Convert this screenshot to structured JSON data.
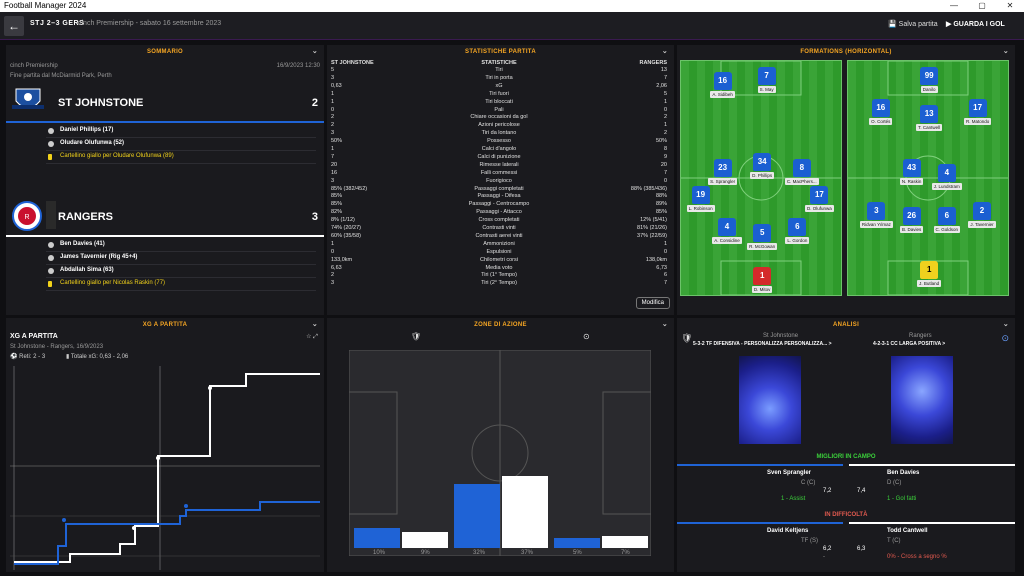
{
  "window": {
    "title": "Football Manager 2024",
    "controls": [
      "—",
      "▢",
      "✕"
    ]
  },
  "header": {
    "back_label": "←",
    "score": "STJ  2–3  GERS",
    "fixture": "cinch Premiership - sabato 16 settembre 2023",
    "save_label": "Salva partita",
    "watch_label": "GUARDA I GOL"
  },
  "summary": {
    "heading": "SOMMARIO",
    "competition": "cinch Premiership",
    "datetime": "16/9/2023 12:30",
    "venue": "Fine partita dal McDiarmid Park, Perth",
    "home": {
      "name": "ST JOHNSTONE",
      "goals": "2",
      "events": [
        {
          "type": "goal",
          "text": "Daniel Phillips (17)"
        },
        {
          "type": "goal",
          "text": "Oludare Olufunwa (52)"
        },
        {
          "type": "card",
          "text": "Cartellino giallo per Oludare Olufunwa (89)"
        }
      ]
    },
    "away": {
      "name": "RANGERS",
      "goals": "3",
      "events": [
        {
          "type": "goal",
          "text": "Ben Davies (41)"
        },
        {
          "type": "goal",
          "text": "James Tavernier (Rig 45+4)"
        },
        {
          "type": "goal",
          "text": "Abdallah Sima (63)"
        },
        {
          "type": "card",
          "text": "Cartellino giallo per Nicolas Raskin (77)"
        }
      ]
    }
  },
  "stats": {
    "heading": "STATISTICHE PARTITA",
    "col_home": "ST JOHNSTONE",
    "col_mid": "STATISTICHE",
    "col_away": "RANGERS",
    "modify_label": "Modifica",
    "rows": [
      [
        "5",
        "Tiri",
        "13"
      ],
      [
        "3",
        "Tiri in porta",
        "7"
      ],
      [
        "0,63",
        "xG",
        "2,06"
      ],
      [
        "1",
        "Tiri fuori",
        "5"
      ],
      [
        "1",
        "Tiri bloccati",
        "1"
      ],
      [
        "0",
        "Pali",
        "0"
      ],
      [
        "2",
        "Chiare occasioni da gol",
        "2"
      ],
      [
        "2",
        "Azioni pericolose",
        "1"
      ],
      [
        "3",
        "Tiri da lontano",
        "2"
      ],
      [
        "50%",
        "Possesso",
        "50%"
      ],
      [
        "1",
        "Calci d'angolo",
        "8"
      ],
      [
        "7",
        "Calci di punizione",
        "9"
      ],
      [
        "20",
        "Rimesse laterali",
        "20"
      ],
      [
        "16",
        "Falli commessi",
        "7"
      ],
      [
        "3",
        "Fuorigioco",
        "0"
      ],
      [
        "85% (382/452)",
        "Passaggi completati",
        "88% (385/436)"
      ],
      [
        "85%",
        "Passaggi - Difesa",
        "88%"
      ],
      [
        "85%",
        "Passaggi - Centrocampo",
        "89%"
      ],
      [
        "82%",
        "Passaggi - Attacco",
        "85%"
      ],
      [
        "8% (1/12)",
        "Cross completati",
        "12% (5/41)"
      ],
      [
        "74% (20/27)",
        "Contrasti vinti",
        "81% (21/26)"
      ],
      [
        "60% (35/58)",
        "Contrasti aerei vinti",
        "37% (22/59)"
      ],
      [
        "1",
        "Ammonizioni",
        "1"
      ],
      [
        "0",
        "Espulsioni",
        "0"
      ],
      [
        "133,0km",
        "Chilometri corsi",
        "138,0km"
      ],
      [
        "6,63",
        "Media voto",
        "6,73"
      ],
      [
        "2",
        "Tiri (1° Tempo)",
        "6"
      ],
      [
        "3",
        "Tiri (2° Tempo)",
        "7"
      ]
    ]
  },
  "formations": {
    "heading": "FORMATIONS (HORIZONTAL)",
    "home": [
      {
        "n": "16",
        "name": "A. Sidibeh",
        "x": 8,
        "y": 2
      },
      {
        "n": "7",
        "name": "S. May",
        "x": 28,
        "y": 0
      },
      {
        "n": "23",
        "name": "S. Sprangler",
        "x": 8,
        "y": 34
      },
      {
        "n": "34",
        "name": "D. Phillips",
        "x": 26,
        "y": 32
      },
      {
        "n": "8",
        "name": "C. MacPhers...",
        "x": 44,
        "y": 34
      },
      {
        "n": "19",
        "name": "L. Robinson",
        "x": -2,
        "y": 44
      },
      {
        "n": "17",
        "name": "D. Olufunwa",
        "x": 52,
        "y": 44
      },
      {
        "n": "4",
        "name": "A. Considine",
        "x": 10,
        "y": 56
      },
      {
        "n": "5",
        "name": "R. McGowan",
        "x": 26,
        "y": 58
      },
      {
        "n": "6",
        "name": "L. Gordon",
        "x": 42,
        "y": 56
      },
      {
        "n": "1",
        "name": "D. Mitov",
        "x": 26,
        "y": 74,
        "gk": true
      }
    ],
    "away": [
      {
        "n": "99",
        "name": "Danilo",
        "x": 26,
        "y": 0
      },
      {
        "n": "16",
        "name": "O. Cortés",
        "x": 4,
        "y": 12
      },
      {
        "n": "13",
        "name": "T. Cantwell",
        "x": 26,
        "y": 14
      },
      {
        "n": "17",
        "name": "R. Matondo",
        "x": 48,
        "y": 12
      },
      {
        "n": "43",
        "name": "N. Raskin",
        "x": 18,
        "y": 34
      },
      {
        "n": "4",
        "name": "J. Lundstram",
        "x": 34,
        "y": 36
      },
      {
        "n": "3",
        "name": "Ridvan Yılmaz",
        "x": 2,
        "y": 50
      },
      {
        "n": "26",
        "name": "B. Davies",
        "x": 18,
        "y": 52
      },
      {
        "n": "6",
        "name": "C. Goldson",
        "x": 34,
        "y": 52
      },
      {
        "n": "2",
        "name": "J. Tavernier",
        "x": 50,
        "y": 50
      },
      {
        "n": "1",
        "name": "J. Butland",
        "x": 26,
        "y": 72,
        "gk": true
      }
    ]
  },
  "xg": {
    "heading": "XG A PARTITA",
    "title": "XG A PARTITA",
    "subtitle": "St Johnstone - Rangers, 16/9/2023",
    "goals": "Reti: 2 - 3",
    "total": "Totale xG: 0,63 - 2,06"
  },
  "zones": {
    "heading": "ZONE DI AZIONE",
    "home_pct": [
      "10%",
      "32%",
      "5%"
    ],
    "away_pct": [
      "9%",
      "37%",
      "7%"
    ]
  },
  "analysis": {
    "heading": "ANALISI",
    "home_team": "St Johnstone",
    "away_team": "Rangers",
    "home_tactic": "5-3-2 TF DIFENSIVA - PERSONALIZZA PERSONALIZZA... >",
    "away_tactic": "4-2-3-1 CC LARGA POSITIVA >",
    "best_label": "MIGLIORI IN CAMPO",
    "struggling_label": "IN DIFFICOLTÀ",
    "best_home": {
      "name": "Sven Sprangler",
      "pos": "C (C)",
      "rating": "7,2",
      "note": "1 - Assist"
    },
    "best_away": {
      "name": "Ben Davies",
      "pos": "D (C)",
      "rating": "7,4",
      "note": "1 - Gol fatti"
    },
    "worst_home": {
      "name": "David Keltjens",
      "pos": "TF (S)",
      "rating": "6,2",
      "note": "-"
    },
    "worst_away": {
      "name": "Todd Cantwell",
      "pos": "T (C)",
      "rating": "6,3",
      "note": "0% - Cross a segno %"
    }
  },
  "colors": {
    "accent": "#f6a623",
    "home_blue": "#1f63d6",
    "away_white": "#ffffff",
    "panel": "#1a1a1e"
  }
}
